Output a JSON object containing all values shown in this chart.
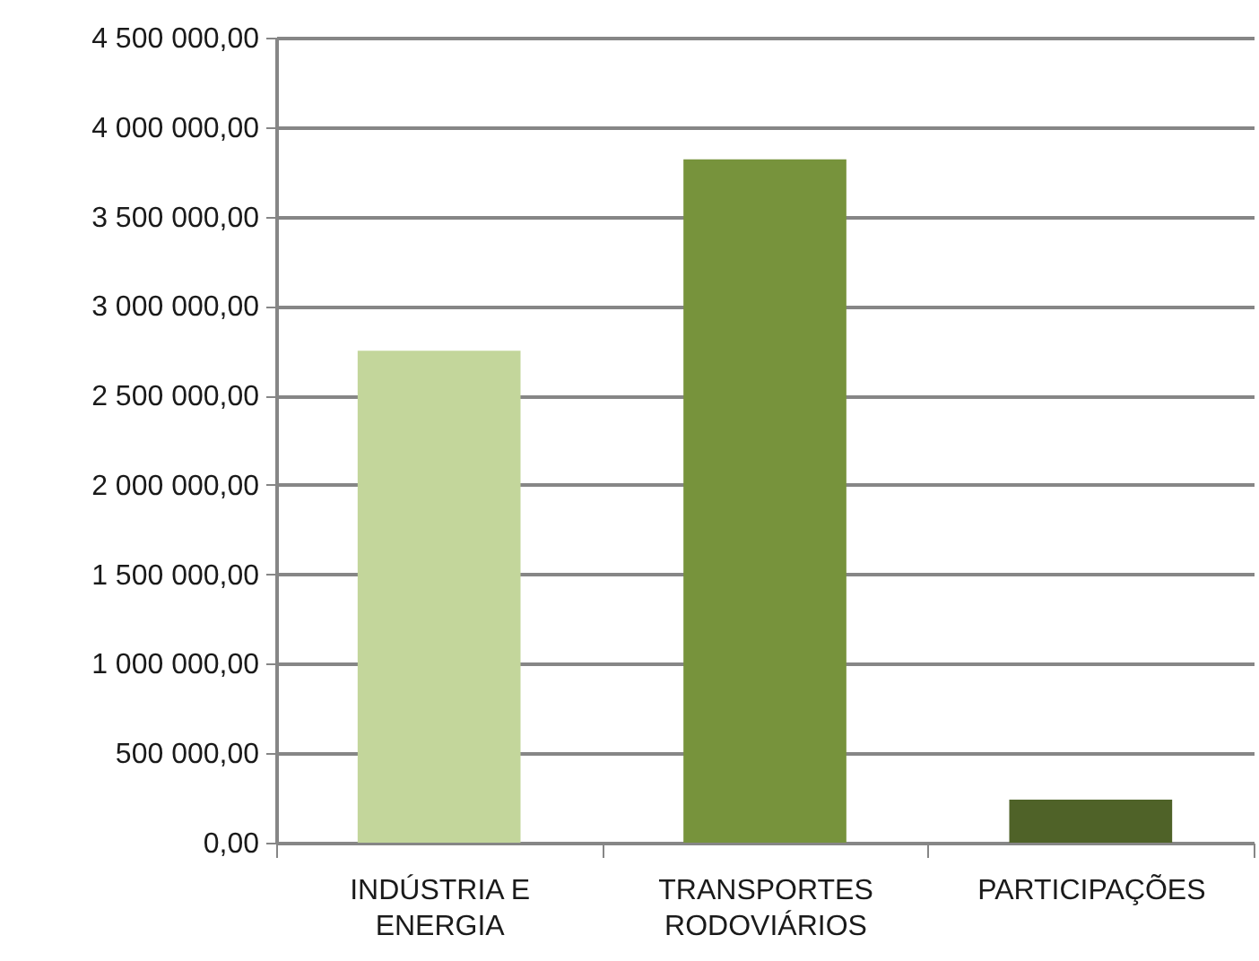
{
  "chart_data": {
    "type": "bar",
    "categories": [
      "INDÚSTRIA E ENERGIA",
      "TRANSPORTES RODOVIÁRIOS",
      "PARTICIPAÇÕES"
    ],
    "values": [
      2750000,
      3820000,
      240000
    ],
    "colors": [
      "#c3d69b",
      "#77933c",
      "#4f6228"
    ],
    "ylim": [
      0,
      4500000
    ],
    "yticks": [
      {
        "value": 0,
        "label": "0,00"
      },
      {
        "value": 500000,
        "label": "500 000,00"
      },
      {
        "value": 1000000,
        "label": "1 000 000,00"
      },
      {
        "value": 1500000,
        "label": "1 500 000,00"
      },
      {
        "value": 2000000,
        "label": "2 000 000,00"
      },
      {
        "value": 2500000,
        "label": "2 500 000,00"
      },
      {
        "value": 3000000,
        "label": "3 000 000,00"
      },
      {
        "value": 3500000,
        "label": "3 500 000,00"
      },
      {
        "value": 4000000,
        "label": "4 000 000,00"
      },
      {
        "value": 4500000,
        "label": "4 500 000,00"
      }
    ],
    "grid": "y"
  }
}
